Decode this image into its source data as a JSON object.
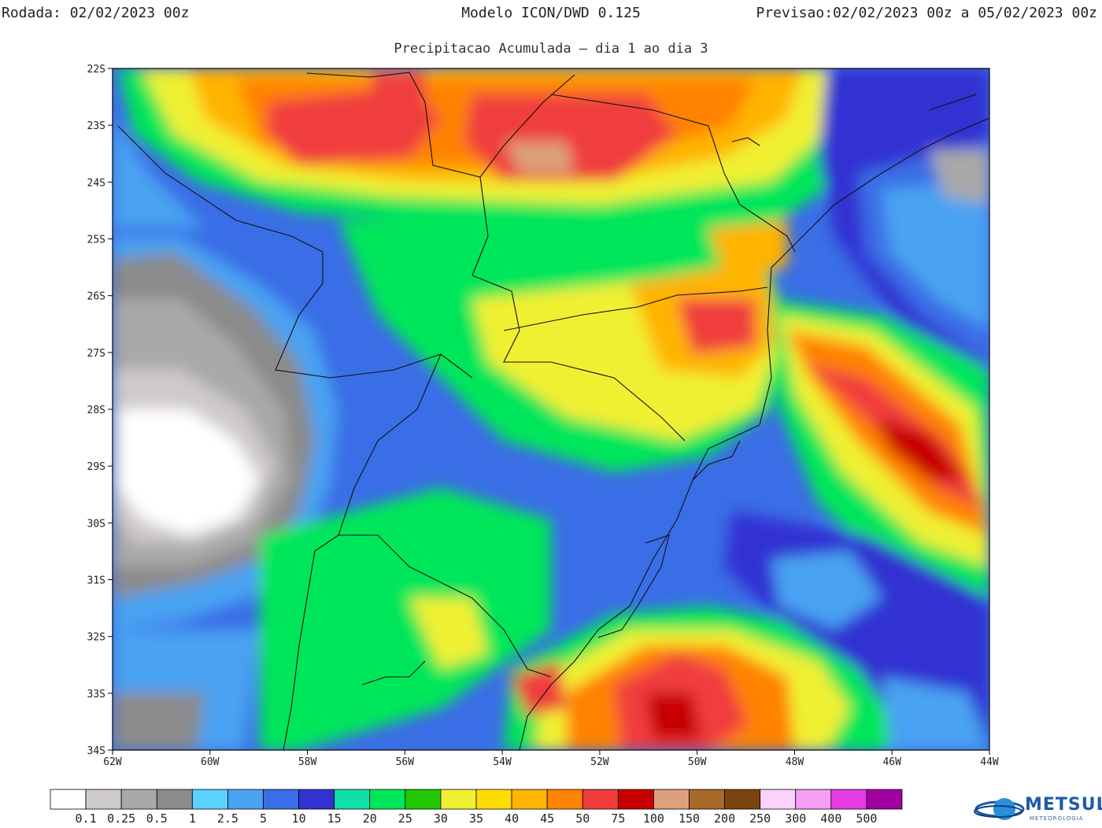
{
  "header": {
    "rodada_label": "Rodada:",
    "rodada_value": "02/02/2023 00z",
    "model": "Modelo ICON/DWD 0.125",
    "previsao_label": "Previsao:",
    "previsao_value": "02/02/2023 00z a 05/02/2023 00z",
    "subtitle": "Precipitacao Acumulada – dia 1 ao dia 3"
  },
  "map": {
    "lat_ticks": [
      "22S",
      "23S",
      "24S",
      "25S",
      "26S",
      "27S",
      "28S",
      "29S",
      "30S",
      "31S",
      "32S",
      "33S",
      "34S"
    ],
    "lon_ticks": [
      "62W",
      "60W",
      "58W",
      "56W",
      "54W",
      "52W",
      "50W",
      "48W",
      "46W",
      "44W"
    ],
    "lon_range": [
      -62,
      -44
    ],
    "lat_range": [
      -34,
      -22
    ]
  },
  "colorbar": {
    "colors": [
      "#ffffff",
      "#cfcaca",
      "#a9a9a9",
      "#8b8b8b",
      "#5ad2ff",
      "#4aa2f2",
      "#3a6ee6",
      "#3232d2",
      "#10e0a8",
      "#00e65a",
      "#22c800",
      "#f0f032",
      "#ffdc00",
      "#ffb400",
      "#ff8200",
      "#f03c3c",
      "#c80000",
      "#dca07a",
      "#a86a28",
      "#7a4410",
      "#fad2fa",
      "#f59ef5",
      "#e63ce6",
      "#a000a0"
    ],
    "labels": [
      "0.1",
      "0.25",
      "0.5",
      "1",
      "2.5",
      "5",
      "10",
      "15",
      "20",
      "25",
      "30",
      "35",
      "40",
      "45",
      "50",
      "75",
      "100",
      "150",
      "200",
      "250",
      "300",
      "400",
      "500"
    ]
  },
  "logo": {
    "name": "METSUL",
    "tagline": "METEOROLOGIA"
  }
}
